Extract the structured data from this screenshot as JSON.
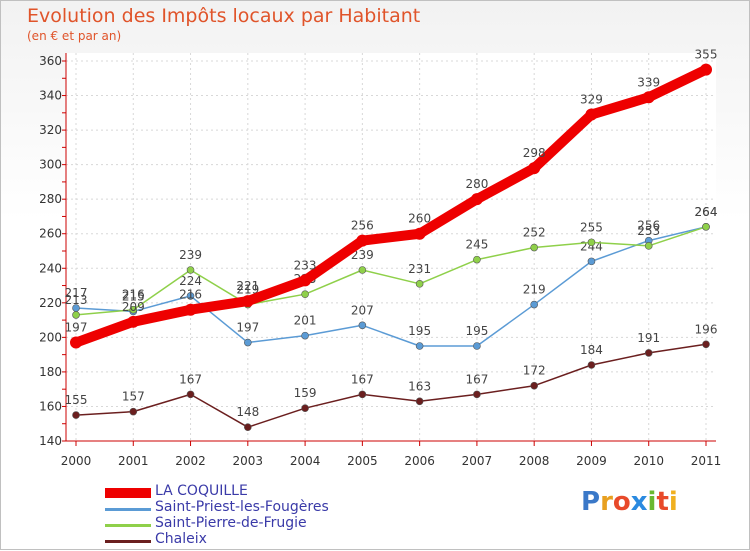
{
  "header": {
    "title": "Evolution des Impôts locaux par Habitant",
    "subtitle": "(en € et par an)"
  },
  "logo": {
    "text": "Proxiti",
    "letters": [
      "P",
      "r",
      "o",
      "x",
      "i",
      "t",
      "i"
    ]
  },
  "chart_data": {
    "type": "line",
    "title": "Evolution des Impôts locaux par Habitant",
    "subtitle": "(en € et par an)",
    "xlabel": "",
    "ylabel": "",
    "categories": [
      "2000",
      "2001",
      "2002",
      "2003",
      "2004",
      "2005",
      "2006",
      "2007",
      "2008",
      "2009",
      "2010",
      "2011"
    ],
    "ylim": [
      140,
      360
    ],
    "yticks": [
      140,
      160,
      180,
      200,
      220,
      240,
      260,
      280,
      300,
      320,
      340,
      360
    ],
    "grid": true,
    "legend_position": "bottom-left",
    "series": [
      {
        "name": "Chaleix",
        "color": "#6b1f1f",
        "values": [
          155,
          157,
          167,
          148,
          159,
          167,
          163,
          167,
          172,
          184,
          191,
          196
        ]
      },
      {
        "name": "Saint-Priest-les-Fougères",
        "color": "#5b9bd5",
        "values": [
          217,
          215,
          224,
          197,
          201,
          207,
          195,
          195,
          219,
          244,
          256,
          264
        ]
      },
      {
        "name": "Saint-Pierre-de-Frugie",
        "color": "#8fd04a",
        "values": [
          213,
          216,
          239,
          219,
          225,
          239,
          231,
          245,
          252,
          255,
          253,
          264
        ]
      },
      {
        "name": "LA COQUILLE",
        "color": "#ee0000",
        "values": [
          197,
          209,
          216,
          221,
          233,
          256,
          260,
          280,
          298,
          329,
          339,
          355
        ]
      }
    ],
    "legend": [
      {
        "name": "LA COQUILLE",
        "color": "#ee0000"
      },
      {
        "name": "Saint-Priest-les-Fougères",
        "color": "#5b9bd5"
      },
      {
        "name": "Saint-Pierre-de-Frugie",
        "color": "#8fd04a"
      },
      {
        "name": "Chaleix",
        "color": "#6b1f1f"
      }
    ]
  }
}
